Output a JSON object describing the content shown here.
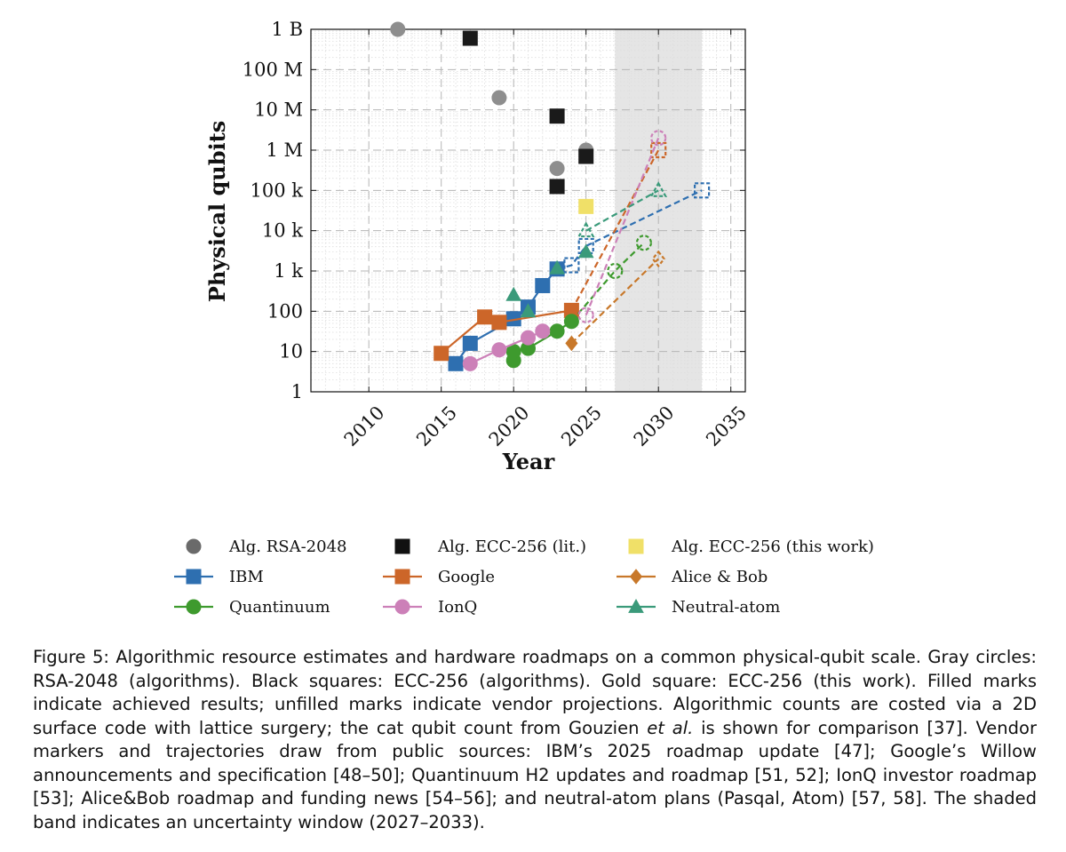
{
  "chart_data": {
    "type": "scatter",
    "xlabel": "Year",
    "ylabel": "Physical qubits",
    "xlim": [
      2006,
      2036
    ],
    "ylim": [
      1,
      1000000000
    ],
    "yscale": "log",
    "x_ticks": [
      2010,
      2015,
      2020,
      2025,
      2030,
      2035
    ],
    "y_ticks": [
      {
        "value": 1,
        "label": "1"
      },
      {
        "value": 10,
        "label": "10"
      },
      {
        "value": 100,
        "label": "100"
      },
      {
        "value": 1000,
        "label": "1 k"
      },
      {
        "value": 10000,
        "label": "10 k"
      },
      {
        "value": 100000,
        "label": "100 k"
      },
      {
        "value": 1000000,
        "label": "1 M"
      },
      {
        "value": 10000000,
        "label": "10 M"
      },
      {
        "value": 100000000,
        "label": "100 M"
      },
      {
        "value": 1000000000,
        "label": "1 B"
      }
    ],
    "shaded_band": {
      "from": 2027,
      "to": 2033,
      "color": "#e5e5e5"
    },
    "series": [
      {
        "name": "Alg. RSA-2048",
        "marker": "circle",
        "color": "#8e8e8e",
        "line": false,
        "points": [
          [
            2012,
            1000000000
          ],
          [
            2019,
            20000000
          ],
          [
            2023,
            350000
          ],
          [
            2025,
            1000000
          ]
        ]
      },
      {
        "name": "Alg. ECC-256 (lit.)",
        "marker": "square",
        "color": "#1a1a1a",
        "line": false,
        "points": [
          [
            2017,
            600000000
          ],
          [
            2023,
            7000000
          ],
          [
            2023,
            125000
          ],
          [
            2025,
            700000
          ]
        ]
      },
      {
        "name": "Alg. ECC-256 (this work)",
        "marker": "square",
        "color": "#f0e068",
        "line": false,
        "points": [
          [
            2025,
            40000
          ]
        ]
      },
      {
        "name": "IBM",
        "marker": "square",
        "color": "#2e6fb0",
        "line": true,
        "points": [
          [
            2016,
            5
          ],
          [
            2017,
            16
          ],
          [
            2020,
            65
          ],
          [
            2021,
            127
          ],
          [
            2022,
            433
          ],
          [
            2023,
            1121
          ]
        ],
        "projection": [
          [
            2023,
            1121
          ],
          [
            2024,
            1386
          ],
          [
            2025,
            4158
          ],
          [
            2033,
            100000
          ]
        ]
      },
      {
        "name": "Google",
        "marker": "square",
        "color": "#cc6629",
        "line": true,
        "points": [
          [
            2015,
            9
          ],
          [
            2018,
            72
          ],
          [
            2019,
            53
          ]
        ],
        "points_2": [
          [
            2019,
            53
          ],
          [
            2024,
            105
          ]
        ],
        "projection": [
          [
            2024,
            105
          ],
          [
            2030,
            1000000
          ]
        ]
      },
      {
        "name": "Alice & Bob",
        "marker": "diamond",
        "color": "#c8782a",
        "line": false,
        "points": [
          [
            2024,
            16
          ]
        ],
        "projection": [
          [
            2024,
            16
          ],
          [
            2030,
            2000
          ]
        ]
      },
      {
        "name": "Quantinuum",
        "marker": "circle",
        "color": "#3e9a2e",
        "line": true,
        "points": [
          [
            2020,
            6
          ],
          [
            2020,
            10
          ],
          [
            2021,
            12
          ],
          [
            2023,
            32
          ],
          [
            2024,
            56
          ]
        ],
        "projection": [
          [
            2024,
            56
          ],
          [
            2027,
            1000
          ],
          [
            2029,
            5000
          ]
        ]
      },
      {
        "name": "IonQ",
        "marker": "circle",
        "color": "#cc80b8",
        "line": true,
        "points": [
          [
            2017,
            5
          ],
          [
            2019,
            11
          ],
          [
            2021,
            22
          ],
          [
            2022,
            32
          ]
        ],
        "projection": [
          [
            2025,
            80
          ],
          [
            2030,
            2000000
          ]
        ]
      },
      {
        "name": "Neutral-atom",
        "marker": "triangle",
        "color": "#3a9a7a",
        "line": false,
        "points": [
          [
            2020,
            256
          ],
          [
            2021,
            100
          ],
          [
            2023,
            1180
          ],
          [
            2025,
            3000
          ]
        ],
        "projection": [
          [
            2025,
            10000
          ],
          [
            2030,
            100000
          ]
        ]
      }
    ]
  },
  "legend": [
    {
      "label": "Alg. RSA-2048",
      "marker": "circle",
      "color": "#6a6a6a",
      "line": false
    },
    {
      "label": "Alg. ECC-256 (lit.)",
      "marker": "square",
      "color": "#111111",
      "line": false
    },
    {
      "label": "Alg. ECC-256 (this work)",
      "marker": "square",
      "color": "#f0e068",
      "line": false
    },
    {
      "label": "IBM",
      "marker": "square",
      "color": "#2e6fb0",
      "line": true
    },
    {
      "label": "Google",
      "marker": "square",
      "color": "#cc6629",
      "line": true
    },
    {
      "label": "Alice & Bob",
      "marker": "diamond",
      "color": "#c8782a",
      "line": true
    },
    {
      "label": "Quantinuum",
      "marker": "circle",
      "color": "#3e9a2e",
      "line": true
    },
    {
      "label": "IonQ",
      "marker": "circle",
      "color": "#cc80b8",
      "line": true
    },
    {
      "label": "Neutral-atom",
      "marker": "triangle",
      "color": "#3a9a7a",
      "line": true
    }
  ],
  "caption": {
    "prefix": "Figure 5: Algorithmic resource estimates and hardware roadmaps on a common physical-qubit scale. Gray circles: RSA-2048 (algorithms). Black squares: ECC-256 (algorithms). Gold square: ECC-256 (this work). Filled marks indicate achieved results; unfilled marks indicate vendor projections. Algorithmic counts are costed via a 2D surface code with lattice surgery; the cat qubit count from Gouzien ",
    "emph": "et al.",
    "suffix": " is shown for comparison [37]. Vendor markers and trajectories draw from public sources: IBM’s 2025 roadmap update [47]; Google’s Willow announcements and specification [48–50]; Quantinuum H2 updates and roadmap [51, 52]; IonQ investor roadmap [53]; Alice&Bob roadmap and funding news [54–56]; and neutral-atom plans (Pasqal, Atom) [57, 58]. The shaded band indicates an uncertainty window (2027–2033)."
  }
}
